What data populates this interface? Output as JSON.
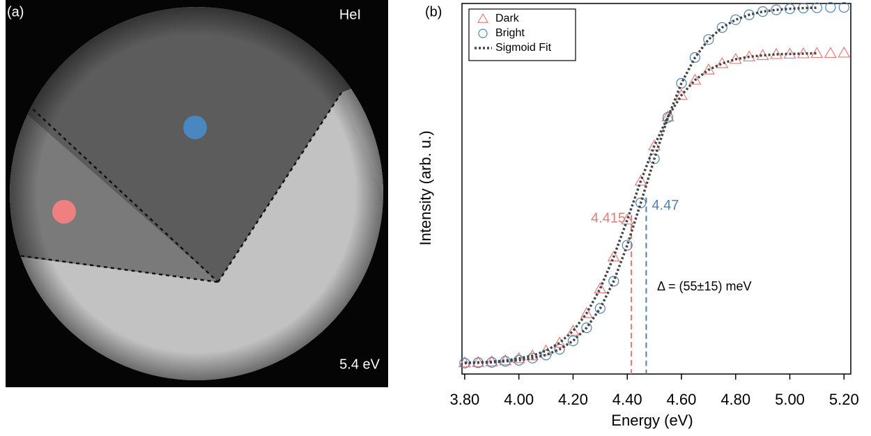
{
  "panel_a": {
    "label": "(a)",
    "source": "HeI",
    "energy": "5.4 eV"
  },
  "chart_data": {
    "type": "scatter",
    "panel_label": "(b)",
    "x_label": "Energy (eV)",
    "y_label": "Intensity (arb. u.)",
    "xlim": [
      3.79,
      5.225
    ],
    "ylim": [
      0,
      1.05
    ],
    "xticks": [
      {
        "value": 3.8,
        "label": "3.80"
      },
      {
        "value": 4.0,
        "label": "4.00"
      },
      {
        "value": 4.2,
        "label": "4.20"
      },
      {
        "value": 4.4,
        "label": "4.40"
      },
      {
        "value": 4.6,
        "label": "4.60"
      },
      {
        "value": 4.8,
        "label": "4.80"
      },
      {
        "value": 5.0,
        "label": "5.00"
      },
      {
        "value": 5.2,
        "label": "5.20"
      }
    ],
    "legend": "upper left",
    "x": [
      3.8,
      3.85,
      3.9,
      3.95,
      4.0,
      4.05,
      4.1,
      4.15,
      4.2,
      4.25,
      4.3,
      4.35,
      4.4,
      4.45,
      4.5,
      4.55,
      4.6,
      4.65,
      4.7,
      4.75,
      4.8,
      4.85,
      4.9,
      4.95,
      5.0,
      5.05,
      5.1,
      5.15,
      5.2
    ],
    "series": [
      {
        "name": "Dark",
        "color": "#e67c7a",
        "marker": "triangle",
        "values": [
          0.032,
          0.033,
          0.035,
          0.038,
          0.044,
          0.052,
          0.066,
          0.088,
          0.122,
          0.172,
          0.242,
          0.332,
          0.437,
          0.547,
          0.647,
          0.729,
          0.79,
          0.833,
          0.862,
          0.88,
          0.892,
          0.899,
          0.903,
          0.906,
          0.907,
          0.908,
          0.909,
          0.909,
          0.91
        ]
      },
      {
        "name": "Bright",
        "color": "#4f82b3",
        "marker": "circle",
        "values": [
          0.031,
          0.032,
          0.033,
          0.036,
          0.039,
          0.045,
          0.054,
          0.07,
          0.094,
          0.131,
          0.186,
          0.263,
          0.365,
          0.485,
          0.61,
          0.727,
          0.824,
          0.897,
          0.948,
          0.982,
          1.004,
          1.018,
          1.027,
          1.032,
          1.035,
          1.037,
          1.038,
          1.039,
          1.039
        ]
      }
    ],
    "fit": {
      "name": "Sigmoid Fit",
      "color": "#444444",
      "x": [
        3.8,
        3.85,
        3.9,
        3.95,
        4.0,
        4.05,
        4.1,
        4.15,
        4.2,
        4.25,
        4.3,
        4.35,
        4.4,
        4.45,
        4.5,
        4.55,
        4.6,
        4.65,
        4.7,
        4.75,
        4.8,
        4.85,
        4.9,
        4.95,
        5.0,
        5.05,
        5.1
      ],
      "curves": [
        [
          0.032,
          0.033,
          0.035,
          0.038,
          0.044,
          0.052,
          0.066,
          0.088,
          0.122,
          0.172,
          0.242,
          0.332,
          0.437,
          0.547,
          0.647,
          0.729,
          0.79,
          0.833,
          0.862,
          0.88,
          0.892,
          0.899,
          0.903,
          0.906,
          0.907,
          0.908,
          0.909
        ],
        [
          0.031,
          0.032,
          0.033,
          0.036,
          0.039,
          0.045,
          0.054,
          0.07,
          0.094,
          0.131,
          0.186,
          0.263,
          0.365,
          0.485,
          0.61,
          0.727,
          0.824,
          0.897,
          0.948,
          0.982,
          1.004,
          1.018,
          1.027,
          1.032,
          1.035,
          1.037,
          1.038
        ]
      ]
    },
    "markers": [
      {
        "value": 4.415,
        "y": 0.45,
        "color": "#e67c7a"
      },
      {
        "value": 4.47,
        "y": 0.5,
        "color": "#4f82b3"
      }
    ],
    "annotation": "Δ = (55±15) meV"
  }
}
